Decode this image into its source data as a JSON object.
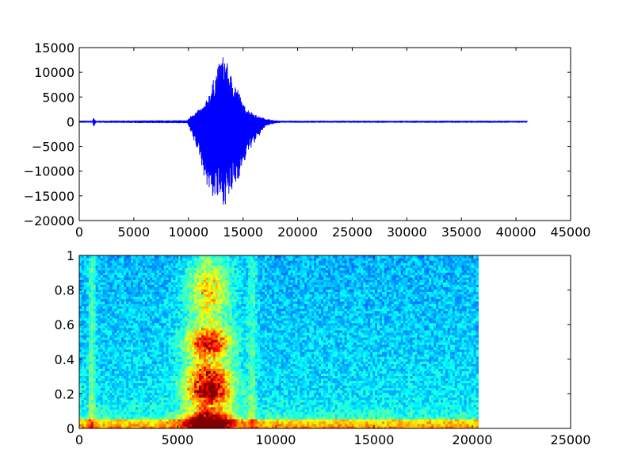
{
  "chart_data": [
    {
      "type": "line",
      "title": "",
      "xlabel": "",
      "ylabel": "",
      "xlim": [
        0,
        45000
      ],
      "ylim": [
        -20000,
        15000
      ],
      "xticks": [
        0,
        5000,
        10000,
        15000,
        20000,
        25000,
        30000,
        35000,
        40000,
        45000
      ],
      "yticks": [
        -20000,
        -15000,
        -10000,
        -5000,
        0,
        5000,
        10000,
        15000
      ],
      "grid": false,
      "series": [
        {
          "color": "#0000ff",
          "envelope": {
            "x": [
              0,
              1200,
              1300,
              1500,
              9900,
              10300,
              11000,
              11500,
              12000,
              12500,
              13000,
              13300,
              13800,
              14500,
              15000,
              15500,
              16300,
              17000,
              17800,
              18500,
              41000
            ],
            "upper": [
              200,
              200,
              800,
              200,
              300,
              1500,
              2500,
              3500,
              6500,
              10000,
              13000,
              13800,
              10000,
              7000,
              3500,
              2500,
              1200,
              700,
              300,
              200,
              200
            ],
            "lower": [
              -200,
              -200,
              -1200,
              -200,
              -300,
              -3000,
              -7000,
              -12000,
              -15000,
              -16000,
              -16500,
              -17000,
              -15500,
              -12000,
              -9000,
              -6000,
              -3500,
              -1000,
              -400,
              -200,
              -200
            ]
          }
        }
      ]
    },
    {
      "type": "heatmap",
      "title": "",
      "xlabel": "",
      "ylabel": "",
      "xlim": [
        0,
        25000
      ],
      "ylim": [
        0,
        1.0
      ],
      "xticks": [
        0,
        5000,
        10000,
        15000,
        20000,
        25000
      ],
      "yticks": [
        0.0,
        0.2,
        0.4,
        0.6,
        0.8,
        1.0
      ],
      "data_x_extent": [
        0,
        20300
      ],
      "colormap": "jet"
    }
  ]
}
